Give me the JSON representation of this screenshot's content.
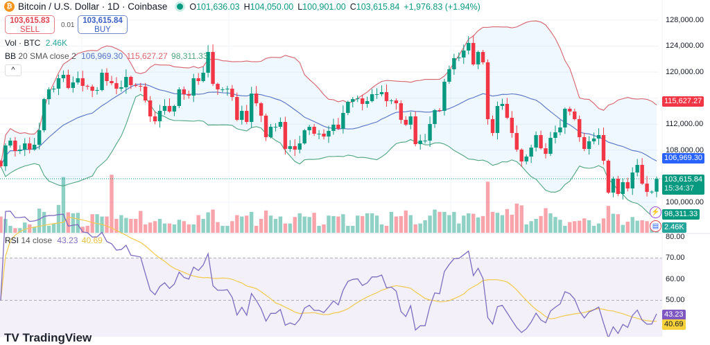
{
  "header": {
    "title": "Bitcoin / U.S. Dollar · 1D · Coinbase",
    "o_label": "O",
    "o": "101,636.03",
    "h_label": "H",
    "h": "104,050.00",
    "l_label": "L",
    "l": "100,901.00",
    "c_label": "C",
    "c": "103,615.84",
    "change": "+1,976.83 (+1.94%)",
    "coin_icon": "bitcoin-icon"
  },
  "trade": {
    "sell_price": "103,615.83",
    "sell_label": "SELL",
    "spread": "0.01",
    "buy_price": "103,615.84",
    "buy_label": "BUY"
  },
  "legend": {
    "vol_label": "Vol · BTC",
    "vol_value": "2.46K",
    "bb_label": "BB",
    "bb_params": "20 SMA close 2",
    "bb_basis": "106,969.30",
    "bb_upper": "115,627.27",
    "bb_lower": "98,311.33",
    "collapse_icon": "chevron-up-icon",
    "rsi_label": "RSI",
    "rsi_params": "14 close",
    "rsi_value": "43.23",
    "rsi_ma": "40.69"
  },
  "axis": {
    "price_ticks": [
      "128,000.00",
      "124,000.00",
      "120,000.00",
      "112,000.00",
      "108,000.00",
      "100,000.00"
    ],
    "rsi_ticks": [
      "80.00",
      "70.00",
      "60.00",
      "50.00"
    ]
  },
  "badges": {
    "upper": "115,627.27",
    "basis": "106,969.30",
    "last": "103,615.84",
    "countdown": "15:34:37",
    "lower": "98,311.33",
    "volume": "2.46K"
  },
  "colors": {
    "up": "#089981",
    "down": "#f23645",
    "bb_basis": "#5572c4",
    "bb_upper": "#d8626c",
    "bb_lower": "#4fa57f",
    "rsi": "#7e6bbf",
    "rsi_ma": "#f2c94c"
  },
  "watermark": "TradingView",
  "chart_data": {
    "type": "candlestick",
    "symbol": "Bitcoin / U.S. Dollar",
    "interval": "1D",
    "ylim": [
      96000,
      129500
    ],
    "rsi_ylim": [
      26,
      81
    ],
    "rsi_levels": [
      70,
      50
    ],
    "grid": true,
    "close": [
      105540,
      108730,
      109480,
      107880,
      108100,
      109050,
      108100,
      108840,
      111070,
      115860,
      117350,
      117460,
      119060,
      119590,
      117570,
      118420,
      119060,
      117890,
      117780,
      117140,
      117250,
      119910,
      118630,
      118310,
      117460,
      117670,
      119270,
      118000,
      117890,
      117780,
      115650,
      113200,
      112450,
      114050,
      114800,
      113950,
      114800,
      117350,
      116610,
      116390,
      119060,
      118630,
      119910,
      123100,
      118200,
      117350,
      117350,
      117460,
      116180,
      112670,
      114050,
      112350,
      116710,
      115220,
      113310,
      110010,
      111600,
      111600,
      112350,
      108200,
      108630,
      108100,
      109050,
      111070,
      111600,
      110540,
      110540,
      110110,
      110970,
      111930,
      111290,
      113730,
      115440,
      115860,
      115970,
      115120,
      115550,
      116610,
      116610,
      116930,
      115550,
      115650,
      115220,
      112670,
      111930,
      113200,
      108940,
      109480,
      109480,
      112030,
      114160,
      114050,
      118530,
      120440,
      122150,
      122250,
      123320,
      124490,
      121190,
      123100,
      121510,
      112780,
      110650,
      114800,
      115120,
      112990,
      110650,
      108100,
      106280,
      107030,
      108410,
      110330,
      108300,
      107450,
      109900,
      110750,
      111500,
      114370,
      113950,
      112780,
      110010,
      108200,
      109370,
      109800,
      110330,
      106390,
      101490,
      103620,
      101280,
      103090,
      102130,
      104580,
      105750,
      102870,
      101600,
      101636.03,
      103615.84
    ],
    "volume_k": [
      3.5,
      3,
      1.5,
      1,
      1,
      2.2,
      1.8,
      1.3,
      5.2,
      4.5,
      1.5,
      2,
      6,
      12,
      4.4,
      4.2,
      4.3,
      1.3,
      1.5,
      4,
      4,
      3.5,
      3.5,
      12.5,
      3,
      3.8,
      3.2,
      3,
      3,
      4.7,
      1.8,
      2.2,
      2.5,
      3,
      2,
      2,
      1.8,
      2.8,
      2.5,
      1.8,
      1.8,
      3.8,
      3,
      4.4,
      5,
      2.3,
      1.5,
      1.5,
      2.5,
      3.8,
      3.5,
      3.7,
      4.5,
      1.5,
      3,
      4.8,
      3.7,
      3,
      3.5,
      2,
      2,
      3.4,
      4.2,
      3.5,
      3.4,
      4.3,
      1.5,
      1.8,
      3.7,
      3.6,
      3.5,
      4,
      1.5,
      1.5,
      3.7,
      3.6,
      4.2,
      4.2,
      3.7,
      1.8,
      1.5,
      4.5,
      3.5,
      3.6,
      4.8,
      3.8,
      1.8,
      2,
      2.7,
      3.7,
      5,
      4.5,
      4.5,
      3.8,
      4.5,
      2,
      3.7,
      4.2,
      4.1,
      3.3,
      3.6,
      11,
      4.5,
      4.3,
      3.8,
      5.1,
      3.9,
      6.3,
      5.9,
      1.8,
      2.5,
      3,
      3.6,
      5.3,
      4.2,
      3.4,
      2.8,
      1.5,
      2.3,
      2.5,
      2.6,
      3.1,
      2.7,
      1.5,
      2,
      3.1,
      5.8,
      4.1,
      4,
      1.7,
      2.4,
      3.4,
      2.6,
      2.7,
      2.5,
      2.1,
      2.46
    ],
    "last_price": 103615.84
  }
}
